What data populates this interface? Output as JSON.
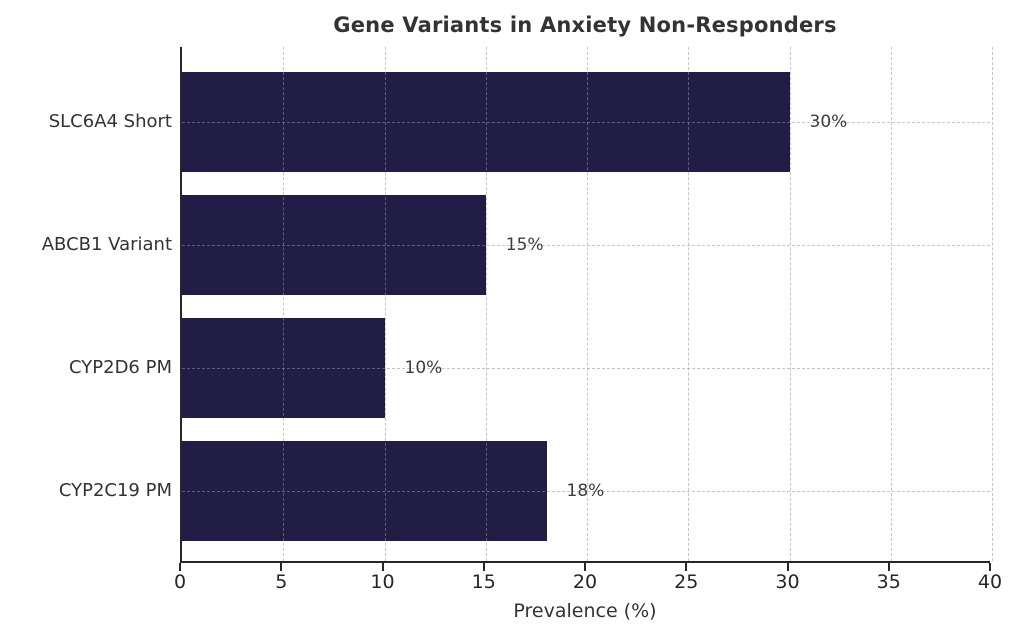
{
  "chart_data": {
    "type": "bar",
    "orientation": "horizontal",
    "title": "Gene Variants in Anxiety Non-Responders",
    "xlabel": "Prevalence (%)",
    "ylabel": "",
    "categories": [
      "SLC6A4 Short",
      "ABCB1 Variant",
      "CYP2D6 PM",
      "CYP2C19 PM"
    ],
    "values": [
      30,
      15,
      10,
      18
    ],
    "value_labels": [
      "30%",
      "15%",
      "10%",
      "18%"
    ],
    "xlim": [
      0,
      40
    ],
    "xticks": [
      0,
      5,
      10,
      15,
      20,
      25,
      30,
      35,
      40
    ],
    "xtick_labels": [
      "0",
      "5",
      "10",
      "15",
      "20",
      "25",
      "30",
      "35",
      "40"
    ],
    "grid": "dashed, vertical at x-ticks and horizontal at category centers, drawn over bars",
    "legend": "none",
    "colors": {
      "bar_fill": "#211d46",
      "grid_line": "rgba(150,150,150,0.55)",
      "axis_spine": "#262626",
      "title_text": "#333333",
      "tick_text": "#262626",
      "value_text": "#3c3c3c"
    }
  }
}
